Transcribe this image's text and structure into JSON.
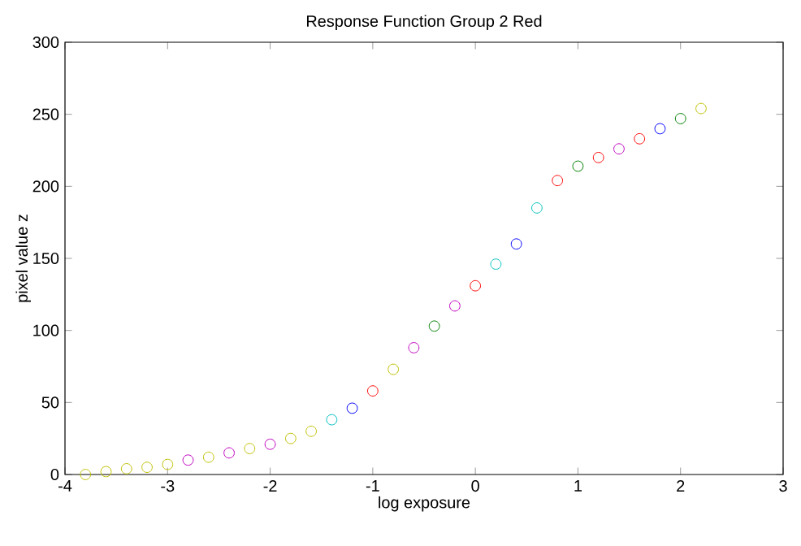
{
  "chart_data": {
    "type": "scatter",
    "title": "Response Function Group 2 Red",
    "xlabel": "log exposure",
    "ylabel": "pixel value z",
    "x": [
      -3.8,
      -3.6,
      -3.4,
      -3.2,
      -3.0,
      -2.8,
      -2.6,
      -2.4,
      -2.2,
      -2.0,
      -1.8,
      -1.6,
      -1.4,
      -1.2,
      -1.0,
      -0.8,
      -0.6,
      -0.4,
      -0.2,
      0.0,
      0.2,
      0.4,
      0.6,
      0.8,
      1.0,
      1.2,
      1.4,
      1.6,
      1.8,
      2.0,
      2.2
    ],
    "values": [
      0,
      2,
      4,
      5,
      7,
      10,
      12,
      15,
      18,
      21,
      25,
      30,
      38,
      46,
      58,
      73,
      88,
      103,
      117,
      131,
      146,
      160,
      185,
      204,
      214,
      220,
      226,
      233,
      240,
      247,
      254
    ],
    "colors": [
      "#bfbf00",
      "#bfbf00",
      "#bfbf00",
      "#bfbf00",
      "#bfbf00",
      "#bf00bf",
      "#bfbf00",
      "#bf00bf",
      "#bfbf00",
      "#bf00bf",
      "#bfbf00",
      "#bfbf00",
      "#00bfbf",
      "#0000ff",
      "#ff0000",
      "#bfbf00",
      "#bf00bf",
      "#008000",
      "#bf00bf",
      "#ff0000",
      "#00bfbf",
      "#0000ff",
      "#00bfbf",
      "#ff0000",
      "#008000",
      "#ff0000",
      "#bf00bf",
      "#ff0000",
      "#0000ff",
      "#008000",
      "#bfbf00"
    ],
    "marker": "circle",
    "xlim": [
      -4,
      3
    ],
    "xticks": [
      -4,
      -3,
      -2,
      -1,
      0,
      1,
      2,
      3
    ],
    "ylim": [
      0,
      300
    ],
    "yticks": [
      0,
      50,
      100,
      150,
      200,
      250,
      300
    ],
    "grid": false
  }
}
